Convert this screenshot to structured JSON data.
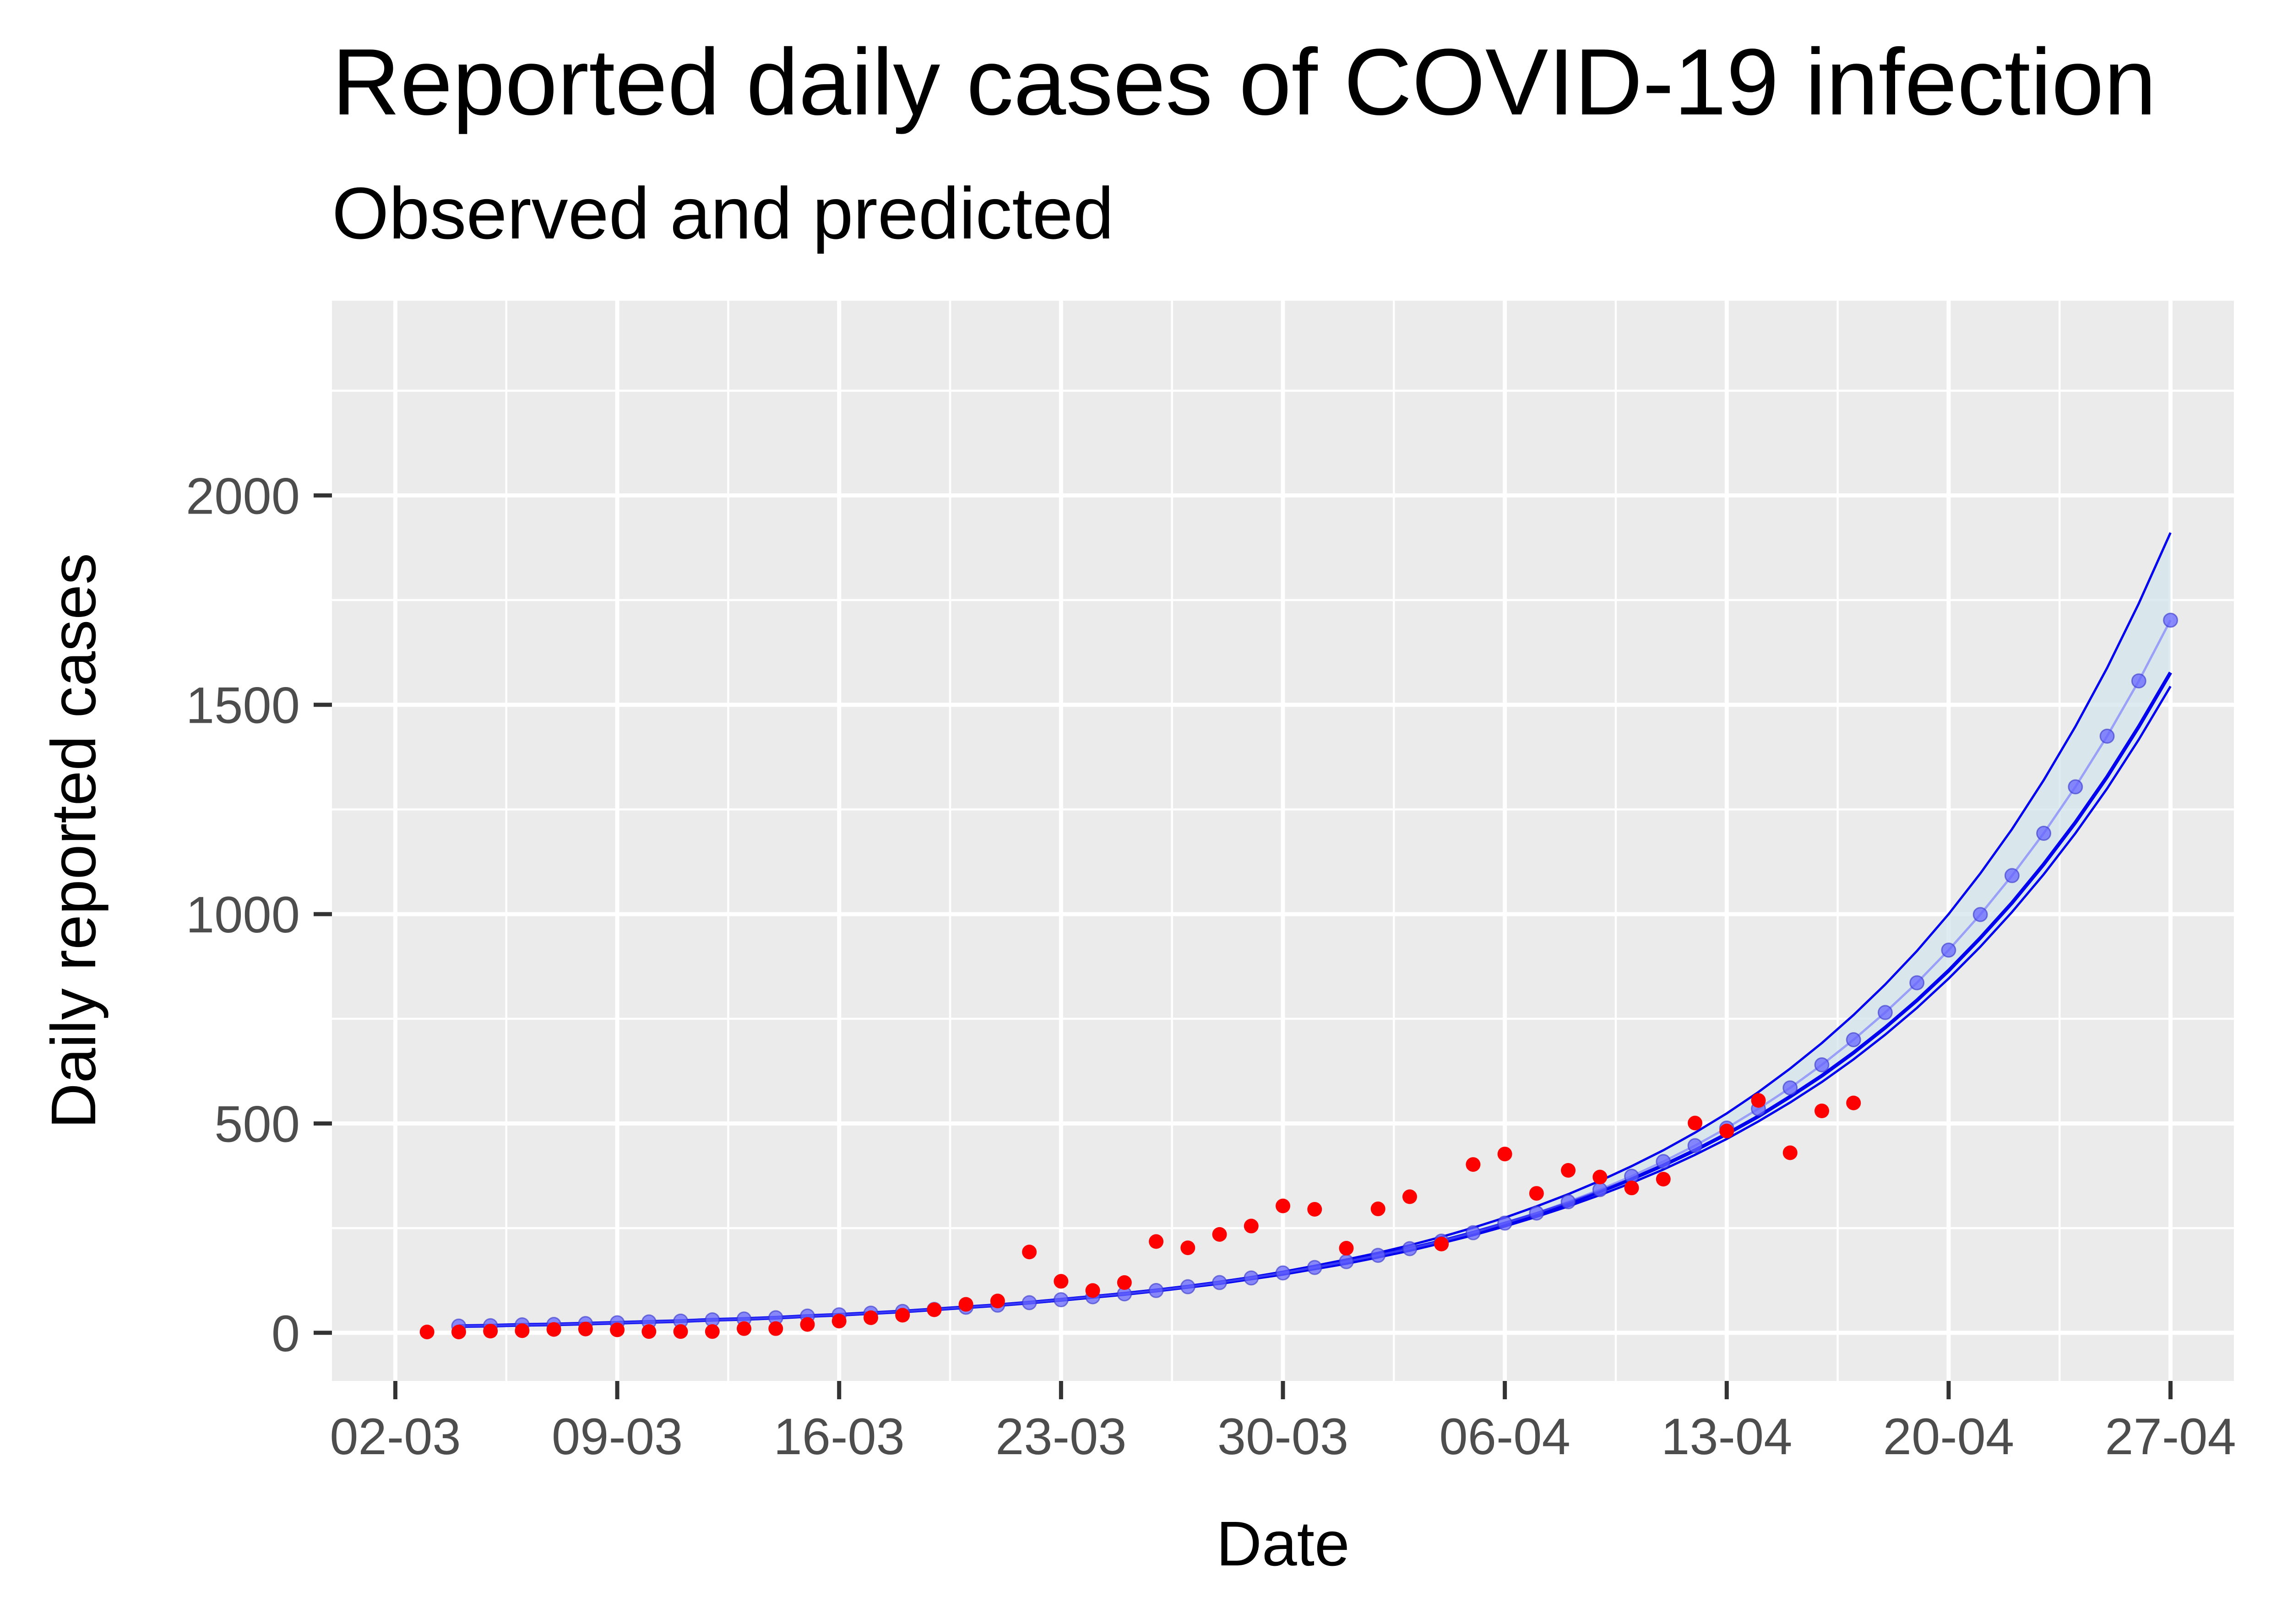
{
  "chart_data": {
    "type": "scatter",
    "title": "Reported daily cases of COVID-19 infection",
    "subtitle": "Observed and predicted",
    "xlabel": "Date",
    "ylabel": "Daily reported cases",
    "x_axis": {
      "type": "date",
      "range": [
        "2020-02-29",
        "2020-04-29"
      ],
      "tick_labels": [
        "02-03",
        "09-03",
        "16-03",
        "23-03",
        "30-03",
        "06-04",
        "13-04",
        "20-04",
        "27-04"
      ],
      "tick_dates": [
        "2020-03-02",
        "2020-03-09",
        "2020-03-16",
        "2020-03-23",
        "2020-03-30",
        "2020-04-06",
        "2020-04-13",
        "2020-04-20",
        "2020-04-27"
      ]
    },
    "y_axis": {
      "range": [
        -115,
        2465
      ],
      "ticks": [
        0,
        500,
        1000,
        1500,
        2000
      ]
    },
    "grid": true,
    "legend": "none",
    "colors": {
      "panel": "#ebebeb",
      "grid": "#ffffff",
      "observed": "#ff0000",
      "predicted": "#6666ff",
      "band_fill": "#d3e6ed",
      "band_edge": "#0000ee",
      "fit_line": "#0000ee"
    },
    "observed": {
      "x": [
        "2020-03-03",
        "2020-03-04",
        "2020-03-05",
        "2020-03-06",
        "2020-03-07",
        "2020-03-08",
        "2020-03-09",
        "2020-03-10",
        "2020-03-11",
        "2020-03-12",
        "2020-03-13",
        "2020-03-14",
        "2020-03-15",
        "2020-03-16",
        "2020-03-17",
        "2020-03-18",
        "2020-03-19",
        "2020-03-20",
        "2020-03-21",
        "2020-03-22",
        "2020-03-23",
        "2020-03-24",
        "2020-03-25",
        "2020-03-26",
        "2020-03-27",
        "2020-03-28",
        "2020-03-29",
        "2020-03-30",
        "2020-03-31",
        "2020-04-01",
        "2020-04-02",
        "2020-04-03",
        "2020-04-04",
        "2020-04-05",
        "2020-04-06",
        "2020-04-07",
        "2020-04-08",
        "2020-04-09",
        "2020-04-10",
        "2020-04-11",
        "2020-04-12",
        "2020-04-13",
        "2020-04-14",
        "2020-04-15",
        "2020-04-16",
        "2020-04-17"
      ],
      "y": [
        2,
        2,
        4,
        5,
        8,
        9,
        7,
        3,
        3,
        3,
        10,
        10,
        20,
        28,
        36,
        42,
        55,
        68,
        76,
        193,
        123,
        101,
        120,
        218,
        203,
        235,
        255,
        303,
        295,
        202,
        296,
        325,
        212,
        402,
        427,
        333,
        388,
        372,
        346,
        367,
        501,
        482,
        555,
        430,
        530,
        549
      ]
    },
    "predicted": {
      "x": [
        "2020-03-04",
        "2020-03-05",
        "2020-03-06",
        "2020-03-07",
        "2020-03-08",
        "2020-03-09",
        "2020-03-10",
        "2020-03-11",
        "2020-03-12",
        "2020-03-13",
        "2020-03-14",
        "2020-03-15",
        "2020-03-16",
        "2020-03-17",
        "2020-03-18",
        "2020-03-19",
        "2020-03-20",
        "2020-03-21",
        "2020-03-22",
        "2020-03-23",
        "2020-03-24",
        "2020-03-25",
        "2020-03-26",
        "2020-03-27",
        "2020-03-28",
        "2020-03-29",
        "2020-03-30",
        "2020-03-31",
        "2020-04-01",
        "2020-04-02",
        "2020-04-03",
        "2020-04-04",
        "2020-04-05",
        "2020-04-06",
        "2020-04-07",
        "2020-04-08",
        "2020-04-09",
        "2020-04-10",
        "2020-04-11",
        "2020-04-12",
        "2020-04-13",
        "2020-04-14",
        "2020-04-15",
        "2020-04-16",
        "2020-04-17",
        "2020-04-18",
        "2020-04-19",
        "2020-04-20",
        "2020-04-21",
        "2020-04-22",
        "2020-04-23",
        "2020-04-24",
        "2020-04-25",
        "2020-04-26",
        "2020-04-27"
      ],
      "y": [
        16,
        17,
        19,
        20,
        22,
        24,
        26,
        28,
        31,
        33,
        36,
        40,
        43,
        47,
        51,
        56,
        61,
        66,
        72,
        79,
        86,
        93,
        101,
        110,
        120,
        131,
        143,
        156,
        170,
        185,
        201,
        219,
        239,
        261,
        284,
        309,
        337,
        367,
        400,
        436,
        475,
        517,
        564,
        614,
        669,
        729,
        794,
        865,
        943,
        1027,
        1119,
        1219,
        1328,
        1448,
        1577
      ],
      "pred": [
        16,
        17,
        19,
        20,
        22,
        24,
        26,
        28,
        31,
        33,
        36,
        40,
        43,
        47,
        51,
        56,
        61,
        66,
        72,
        79,
        86,
        93,
        101,
        110,
        120,
        131,
        143,
        156,
        170,
        185,
        201,
        219,
        239,
        262,
        286,
        313,
        342,
        374,
        409,
        447,
        489,
        535,
        585,
        640,
        700,
        765,
        836,
        914,
        999,
        1092,
        1193,
        1304,
        1425,
        1557,
        1702
      ],
      "lower": [
        15,
        16,
        18,
        19,
        21,
        23,
        25,
        27,
        30,
        32,
        35,
        39,
        42,
        46,
        50,
        55,
        60,
        65,
        71,
        77,
        84,
        91,
        99,
        108,
        117,
        128,
        139,
        152,
        165,
        180,
        196,
        214,
        233,
        254,
        277,
        302,
        329,
        358,
        390,
        425,
        463,
        505,
        550,
        599,
        653,
        712,
        776,
        846,
        922,
        1005,
        1095,
        1193,
        1300,
        1417,
        1544
      ],
      "upper": [
        17,
        18,
        20,
        21,
        23,
        25,
        27,
        29,
        32,
        34,
        37,
        41,
        44,
        48,
        52,
        57,
        62,
        67,
        73,
        80,
        87,
        95,
        103,
        112,
        122,
        133,
        146,
        160,
        175,
        191,
        209,
        229,
        251,
        275,
        302,
        331,
        363,
        398,
        436,
        478,
        524,
        575,
        631,
        692,
        759,
        832,
        912,
        1000,
        1097,
        1203,
        1320,
        1448,
        1588,
        1742,
        1911
      ]
    }
  }
}
